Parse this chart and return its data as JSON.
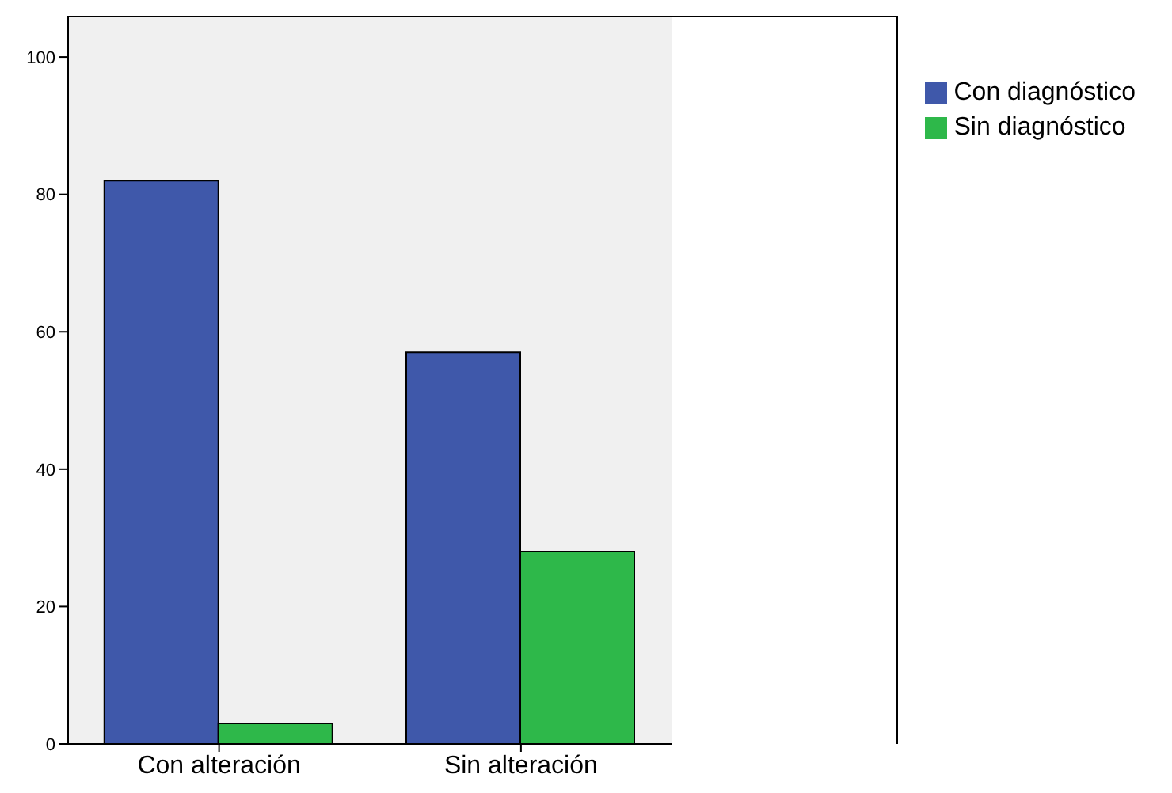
{
  "chart_data": {
    "type": "bar",
    "categories": [
      "Con alteración",
      "Sin alteración"
    ],
    "series": [
      {
        "name": "Con diagnóstico",
        "color": "#3f58aa",
        "values": [
          82,
          57
        ]
      },
      {
        "name": "Sin diagnóstico",
        "color": "#2eb84a",
        "values": [
          3,
          28
        ]
      }
    ],
    "ylim": [
      0,
      106
    ],
    "yticks": [
      0,
      20,
      40,
      60,
      80,
      100
    ],
    "grid": false,
    "legend": "top right"
  }
}
